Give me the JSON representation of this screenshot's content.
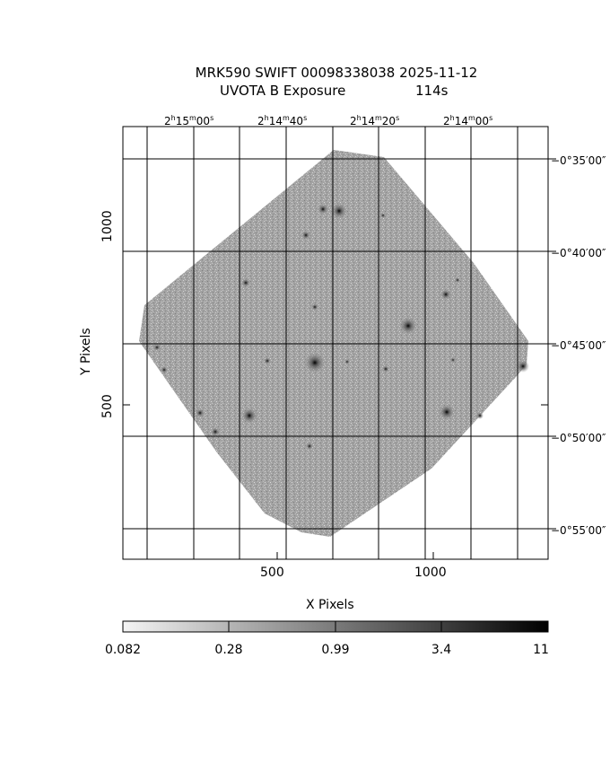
{
  "title": {
    "target": "MRK590",
    "mission": "SWIFT",
    "obsid": "00098338038",
    "date": "2025-11-12",
    "instrument_line": "UVOTA B Exposure",
    "exposure": "114s"
  },
  "axes": {
    "x_label": "X Pixels",
    "y_label": "Y Pixels",
    "x_ticks": [
      "500",
      "1000"
    ],
    "y_ticks": [
      "500",
      "1000"
    ],
    "ra_ticks": [
      {
        "h": "2",
        "m": "15",
        "s": "00"
      },
      {
        "h": "2",
        "m": "14",
        "s": "40"
      },
      {
        "h": "2",
        "m": "14",
        "s": "20"
      },
      {
        "h": "2",
        "m": "14",
        "s": "00"
      }
    ],
    "dec_ticks": [
      "−0°35′00″",
      "−0°40′00″",
      "−0°45′00″",
      "−0°50′00″",
      "−0°55′00″"
    ]
  },
  "colorbar": {
    "ticks": [
      "0.082",
      "0.28",
      "0.99",
      "3.4",
      "11"
    ]
  },
  "colors": {
    "sky": "#9c9c9c",
    "grid": "#000000",
    "background": "#ffffff"
  }
}
